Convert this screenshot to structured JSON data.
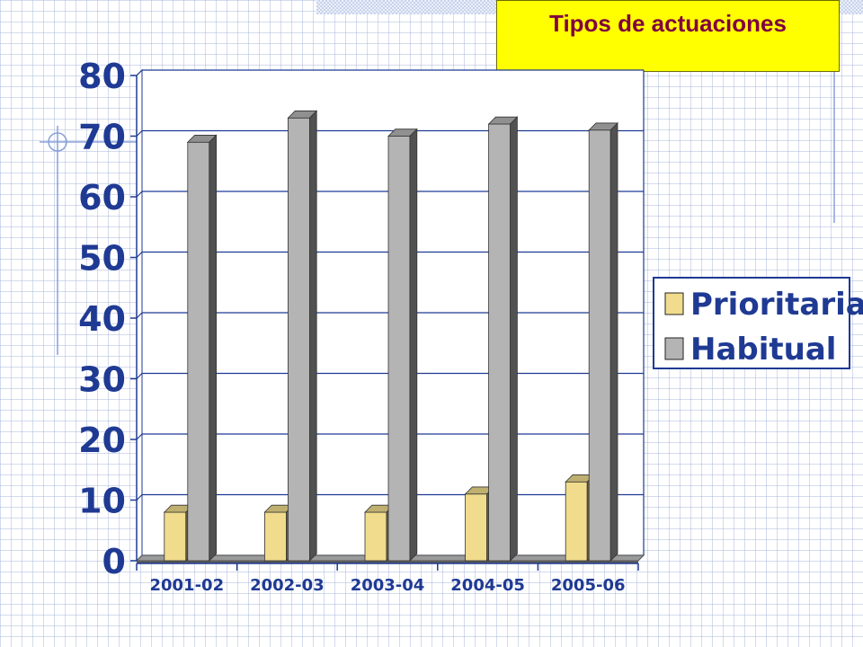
{
  "chart_data": {
    "type": "bar",
    "title": "Tipos de actuaciones",
    "categories": [
      "2001-02",
      "2002-03",
      "2003-04",
      "2004-05",
      "2005-06"
    ],
    "series": [
      {
        "name": "Prioritaria",
        "values": [
          8,
          8,
          8,
          11,
          13
        ],
        "color": "#f0dc8c"
      },
      {
        "name": "Habitual",
        "values": [
          69,
          73,
          70,
          72,
          71
        ],
        "color": "#b4b4b4"
      }
    ],
    "xlabel": "",
    "ylabel": "",
    "ylim": [
      0,
      80
    ],
    "yticks": [
      0,
      10,
      20,
      30,
      40,
      50,
      60,
      70,
      80
    ],
    "grid": true,
    "legend": "right",
    "three_d": true,
    "colors": {
      "axis": "#1f3a93",
      "title_text": "#800040",
      "title_background": "#ffff00"
    }
  }
}
